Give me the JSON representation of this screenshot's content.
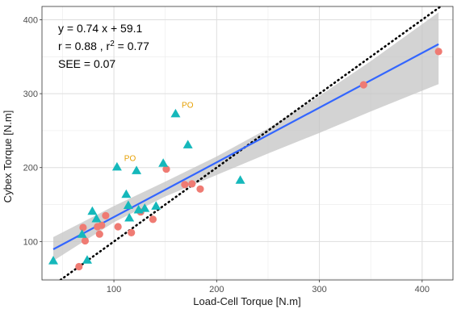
{
  "chart_data": {
    "type": "scatter",
    "xlabel": "Load-Cell Torque [N.m]",
    "ylabel": "Cybex Torque [N.m]",
    "xlim": [
      30,
      430
    ],
    "ylim": [
      48,
      418
    ],
    "xticks": [
      100,
      200,
      300,
      400
    ],
    "yticks": [
      100,
      200,
      300,
      400
    ],
    "grid": true,
    "stats": {
      "equation": "y = 0.74 x + 59.1",
      "r_part": "r = 0.88 , r",
      "r2_sup": "2",
      "r2_val": " = 0.77",
      "see": "SEE = 0.07"
    },
    "series": [
      {
        "marker": "circle",
        "color": "#ef7b73",
        "points": [
          [
            66,
            66
          ],
          [
            70,
            119
          ],
          [
            72,
            101
          ],
          [
            84,
            120
          ],
          [
            86,
            110
          ],
          [
            88,
            122
          ],
          [
            92,
            135
          ],
          [
            104,
            120
          ],
          [
            117,
            112
          ],
          [
            126,
            140
          ],
          [
            138,
            130
          ],
          [
            151,
            198
          ],
          [
            169,
            177
          ],
          [
            176,
            178
          ],
          [
            184,
            171
          ],
          [
            343,
            312
          ],
          [
            416,
            357
          ]
        ]
      },
      {
        "marker": "triangle",
        "color": "#15b8bb",
        "points": [
          [
            41,
            74
          ],
          [
            69,
            110
          ],
          [
            74,
            75
          ],
          [
            79,
            141
          ],
          [
            83,
            131
          ],
          [
            103,
            201
          ],
          [
            112,
            164
          ],
          [
            114,
            149
          ],
          [
            115,
            132
          ],
          [
            122,
            196
          ],
          [
            124,
            143
          ],
          [
            130,
            145
          ],
          [
            141,
            148
          ],
          [
            148,
            206
          ],
          [
            160,
            273
          ],
          [
            172,
            231
          ],
          [
            223,
            183
          ]
        ]
      }
    ],
    "regression": {
      "slope": 0.74,
      "intercept": 59.1,
      "color": "#3366ff"
    },
    "confidence_band": {
      "color": "#c4c4c4",
      "upper": [
        [
          41,
          106
        ],
        [
          100,
          148
        ],
        [
          150,
          181
        ],
        [
          200,
          215
        ],
        [
          250,
          253
        ],
        [
          300,
          297
        ],
        [
          350,
          344
        ],
        [
          416,
          410
        ]
      ],
      "lower": [
        [
          41,
          74
        ],
        [
          100,
          126
        ],
        [
          150,
          161
        ],
        [
          200,
          190
        ],
        [
          250,
          219
        ],
        [
          300,
          247
        ],
        [
          350,
          276
        ],
        [
          416,
          313
        ]
      ]
    },
    "identity_line": {
      "slope": 1,
      "intercept": 0,
      "color": "#000000"
    },
    "annotations": [
      {
        "text": "PO",
        "x": 166,
        "y": 281,
        "color": "#e69f00"
      },
      {
        "text": "PO",
        "x": 110,
        "y": 209,
        "color": "#e69f00"
      }
    ]
  }
}
